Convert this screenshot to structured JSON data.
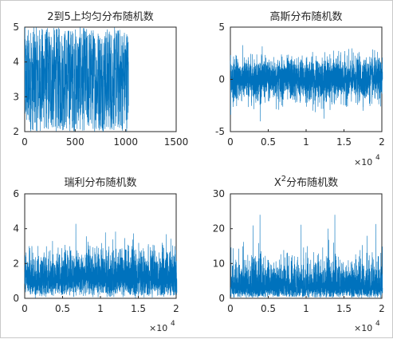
{
  "chart_data": [
    {
      "type": "line",
      "title": "2到5上均匀分布随机数",
      "distribution": "uniform",
      "series_color": "#0072bd",
      "xlim": [
        0,
        1500
      ],
      "ylim": [
        2,
        5
      ],
      "xticks": [
        "0",
        "500",
        "1000",
        "1500"
      ],
      "yticks": [
        "2",
        "3",
        "4",
        "5"
      ],
      "x_exponent_base": "",
      "x_exponent_power": "",
      "n_points": 1024,
      "x_range": [
        1,
        1024
      ],
      "value_range": [
        2,
        5
      ],
      "grid": false
    },
    {
      "type": "line",
      "title": "高斯分布随机数",
      "distribution": "gaussian",
      "series_color": "#0072bd",
      "xlim": [
        0,
        20000
      ],
      "ylim": [
        -5,
        5
      ],
      "xticks": [
        "0",
        "0.5",
        "1",
        "1.5",
        "2"
      ],
      "yticks": [
        "-5",
        "0",
        "5"
      ],
      "x_exponent_base": "×10",
      "x_exponent_power": "4",
      "n_points": 20000,
      "x_range": [
        1,
        20000
      ],
      "mean": 0,
      "std": 1,
      "value_range": [
        -4.2,
        4.2
      ],
      "grid": false
    },
    {
      "type": "line",
      "title": "瑞利分布随机数",
      "distribution": "rayleigh",
      "series_color": "#0072bd",
      "xlim": [
        0,
        20000
      ],
      "ylim": [
        0,
        6
      ],
      "xticks": [
        "0",
        "0.5",
        "1",
        "1.5",
        "2"
      ],
      "yticks": [
        "0",
        "2",
        "4",
        "6"
      ],
      "x_exponent_base": "×10",
      "x_exponent_power": "4",
      "n_points": 20000,
      "x_range": [
        1,
        20000
      ],
      "sigma": 1,
      "value_range": [
        0,
        4.6
      ],
      "grid": false
    },
    {
      "type": "line",
      "title_prefix": "X",
      "title_superscript": "2",
      "title_suffix": "分布随机数",
      "distribution": "chi-square",
      "series_color": "#0072bd",
      "xlim": [
        0,
        20000
      ],
      "ylim": [
        0,
        30
      ],
      "xticks": [
        "0",
        "0.5",
        "1",
        "1.5",
        "2"
      ],
      "yticks": [
        "0",
        "10",
        "20",
        "30"
      ],
      "x_exponent_base": "×10",
      "x_exponent_power": "4",
      "n_points": 20000,
      "x_range": [
        1,
        20000
      ],
      "degrees_of_freedom": 4,
      "value_range": [
        0,
        24
      ],
      "grid": false
    }
  ]
}
